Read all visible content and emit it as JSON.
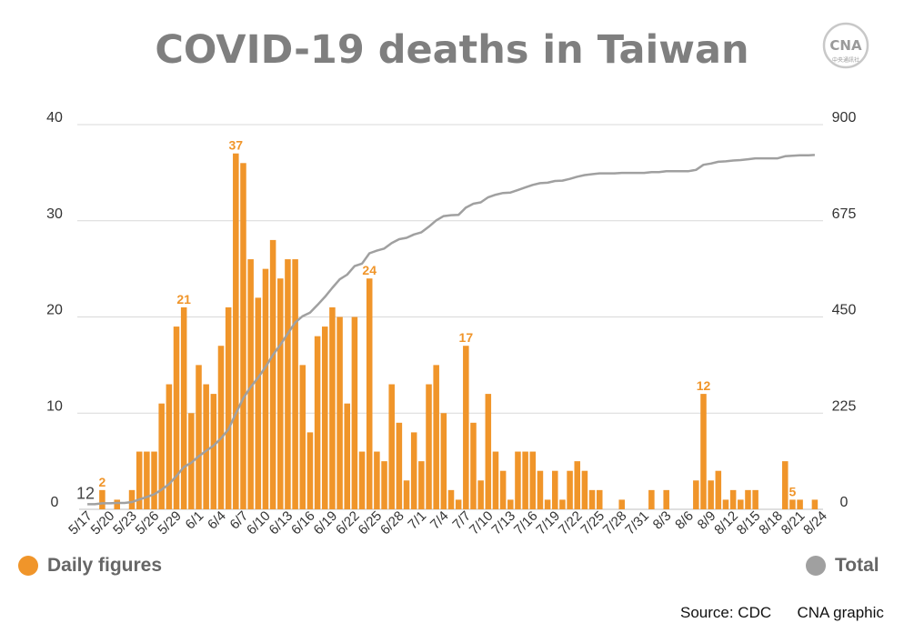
{
  "title": "COVID-19 deaths in Taiwan",
  "logo": {
    "text": "CNA",
    "subtext": "中央通訊社"
  },
  "legend": {
    "daily": "Daily figures",
    "total": "Total"
  },
  "source": "Source: CDC      CNA graphic",
  "colors": {
    "bar": "#f0952a",
    "line": "#a0a0a0",
    "label": "#f0952a",
    "axis_text": "#333333",
    "grid": "#d9d9d9"
  },
  "chart_data": {
    "type": "bar",
    "combo_line": true,
    "left_axis": {
      "ticks": [
        0,
        10,
        20,
        30,
        40
      ],
      "range": [
        0,
        40
      ]
    },
    "right_axis": {
      "ticks": [
        0,
        225,
        450,
        675,
        900
      ],
      "range": [
        0,
        900
      ]
    },
    "x_tick_labels": [
      "5/17",
      "5/20",
      "5/23",
      "5/26",
      "5/29",
      "6/1",
      "6/4",
      "6/7",
      "6/10",
      "6/13",
      "6/16",
      "6/19",
      "6/22",
      "6/25",
      "6/28",
      "7/1",
      "7/4",
      "7/7",
      "7/10",
      "7/13",
      "7/16",
      "7/19",
      "7/22",
      "7/25",
      "7/28",
      "7/31",
      "8/3",
      "8/6",
      "8/9",
      "8/12",
      "8/15",
      "8/18",
      "8/21",
      "8/24"
    ],
    "x_start": "5/17",
    "series": [
      {
        "name": "Daily figures",
        "axis": "left",
        "values": [
          0,
          0,
          2,
          0,
          1,
          0,
          2,
          6,
          6,
          6,
          11,
          13,
          19,
          21,
          10,
          15,
          13,
          12,
          17,
          21,
          37,
          36,
          26,
          22,
          25,
          28,
          24,
          26,
          26,
          15,
          8,
          18,
          19,
          21,
          20,
          11,
          20,
          6,
          24,
          6,
          5,
          13,
          9,
          3,
          8,
          5,
          13,
          15,
          10,
          2,
          1,
          17,
          9,
          3,
          12,
          6,
          4,
          1,
          6,
          6,
          6,
          4,
          1,
          4,
          1,
          4,
          5,
          4,
          2,
          2,
          0,
          0,
          1,
          0,
          0,
          0,
          2,
          0,
          2,
          0,
          0,
          0,
          3,
          12,
          3,
          4,
          1,
          2,
          1,
          2,
          2,
          0,
          0,
          0,
          5,
          1,
          1,
          0,
          1
        ]
      },
      {
        "name": "Total",
        "axis": "right",
        "values": [
          12,
          12,
          14,
          14,
          15,
          15,
          17,
          23,
          29,
          35,
          46,
          59,
          78,
          99,
          109,
          124,
          137,
          149,
          166,
          187,
          224,
          260,
          286,
          308,
          333,
          361,
          385,
          411,
          437,
          452,
          460,
          478,
          497,
          518,
          538,
          549,
          569,
          575,
          599,
          605,
          610,
          623,
          632,
          635,
          643,
          648,
          661,
          676,
          686,
          688,
          689,
          706,
          715,
          718,
          730,
          736,
          740,
          741,
          747,
          753,
          759,
          763,
          764,
          768,
          769,
          773,
          778,
          782,
          784,
          786,
          786,
          786,
          787,
          787,
          787,
          787,
          789,
          789,
          791,
          791,
          791,
          791,
          794,
          806,
          809,
          813,
          814,
          816,
          817,
          819,
          821,
          821,
          821,
          821,
          826,
          827,
          828,
          828,
          829
        ]
      }
    ],
    "data_labels": [
      {
        "series": "Daily figures",
        "date": "5/19",
        "value": "2"
      },
      {
        "series": "Daily figures",
        "date": "5/30",
        "value": "21"
      },
      {
        "series": "Daily figures",
        "date": "6/6",
        "value": "37"
      },
      {
        "series": "Daily figures",
        "date": "6/24",
        "value": "24"
      },
      {
        "series": "Daily figures",
        "date": "7/7",
        "value": "17"
      },
      {
        "series": "Daily figures",
        "date": "8/8",
        "value": "12"
      },
      {
        "series": "Daily figures",
        "date": "8/20",
        "value": "5"
      },
      {
        "series": "Daily figures",
        "date": "8/24",
        "value": "1"
      },
      {
        "series": "Total",
        "date": "5/17",
        "value": "12"
      },
      {
        "series": "Total",
        "date": "8/24",
        "value": "829"
      }
    ]
  }
}
